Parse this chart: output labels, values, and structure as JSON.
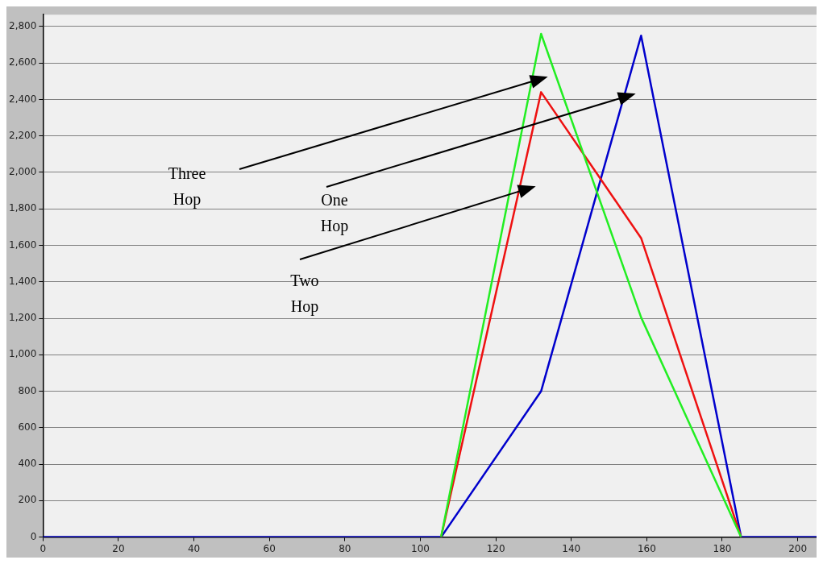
{
  "chart_data": {
    "type": "line",
    "x": [
      0,
      105.5,
      132,
      158.5,
      185,
      205
    ],
    "series": [
      {
        "color": "#22ee22",
        "values": [
          null,
          0,
          2760,
          1205,
          0,
          null
        ]
      },
      {
        "color": "#ee1111",
        "values": [
          null,
          0,
          2440,
          1640,
          0,
          null
        ]
      },
      {
        "color": "#0000cc",
        "values": [
          0,
          0,
          800,
          2750,
          0,
          0
        ]
      }
    ],
    "xlim": [
      0,
      205
    ],
    "xticks": [
      0,
      20,
      40,
      60,
      80,
      100,
      120,
      140,
      160,
      180,
      200
    ],
    "ylim": [
      0,
      2865
    ],
    "yticks": [
      {
        "value": 0,
        "label": "0"
      },
      {
        "value": 200,
        "label": "200"
      },
      {
        "value": 400,
        "label": "400"
      },
      {
        "value": 600,
        "label": "600"
      },
      {
        "value": 800,
        "label": "800"
      },
      {
        "value": 1000,
        "label": "1,000"
      },
      {
        "value": 1200,
        "label": "1,200"
      },
      {
        "value": 1400,
        "label": "1,400"
      },
      {
        "value": 1600,
        "label": "1,600"
      },
      {
        "value": 1800,
        "label": "1,800"
      },
      {
        "value": 2000,
        "label": "2,000"
      },
      {
        "value": 2200,
        "label": "2,200"
      },
      {
        "value": 2400,
        "label": "2,400"
      },
      {
        "value": 2600,
        "label": "2,600"
      },
      {
        "value": 2800,
        "label": "2,800"
      }
    ],
    "annotations": [
      "Three Hop",
      "One Hop",
      "Two Hop"
    ],
    "grid": "y",
    "legend": false,
    "marker": "none",
    "line_style": "solid"
  }
}
